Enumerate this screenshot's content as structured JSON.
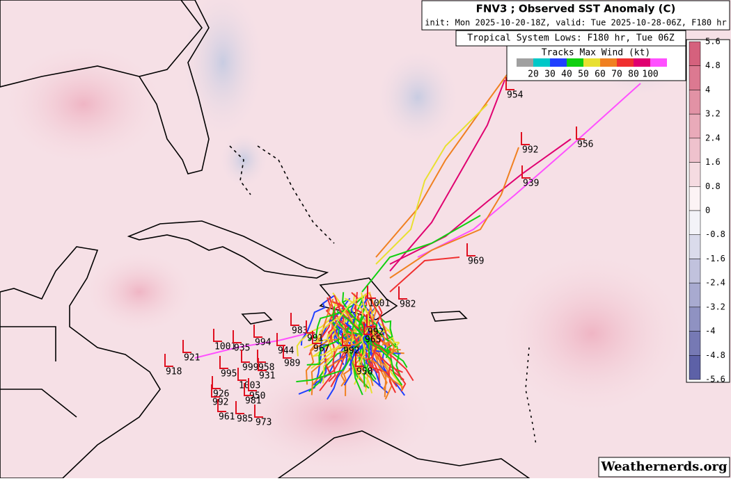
{
  "header": {
    "title": "FNV3 ; Observed SST Anomaly (C)",
    "init": "init: Mon 2025-10-20-18Z, valid: Tue 2025-10-28-06Z, F180 hr",
    "lows_title": "Tropical System Lows: F180 hr, Tue 06Z"
  },
  "legend": {
    "title": "Tracks Max Wind (kt)",
    "labels": [
      20,
      30,
      40,
      50,
      60,
      70,
      80,
      100
    ],
    "colors": [
      "#a0a0a0",
      "#00c8c8",
      "#2040ff",
      "#10d010",
      "#e8e030",
      "#f08020",
      "#f03030",
      "#e00070",
      "#ff50ff"
    ]
  },
  "colorbar": {
    "labels": [
      5.6,
      4.8,
      4,
      3.2,
      2.4,
      1.6,
      0.8,
      0,
      -0.8,
      -1.6,
      -2.4,
      -3.2,
      -4,
      -4.8,
      -5.6
    ]
  },
  "lows": [
    954,
    992,
    956,
    939,
    969,
    1001,
    982,
    992,
    965,
    992,
    958,
    921,
    918,
    1001,
    935,
    994,
    983,
    991,
    967,
    944,
    989,
    958,
    999,
    995,
    931,
    1003,
    926,
    950,
    981,
    992,
    961,
    985,
    973
  ],
  "watermark": "Weathernerds.org"
}
